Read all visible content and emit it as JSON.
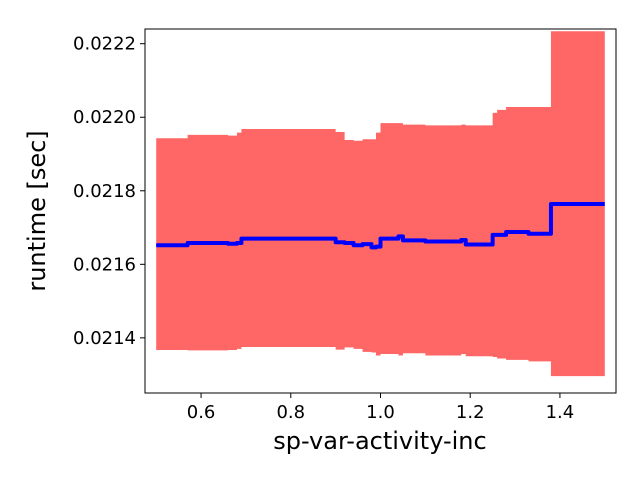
{
  "chart_data": {
    "type": "line",
    "title": "",
    "xlabel": "sp-var-activity-inc",
    "ylabel": "runtime [sec]",
    "xlim": [
      0.475,
      1.525
    ],
    "ylim": [
      0.02125,
      0.02224
    ],
    "xticks": [
      0.6,
      0.8,
      1.0,
      1.2,
      1.4
    ],
    "xtick_labels": [
      "0.6",
      "0.8",
      "1.0",
      "1.2",
      "1.4"
    ],
    "yticks": [
      0.0214,
      0.0216,
      0.0218,
      0.022,
      0.0222
    ],
    "ytick_labels": [
      "0.0214",
      "0.0216",
      "0.0218",
      "0.0220",
      "0.0222"
    ],
    "grid": false,
    "legend": "none",
    "colors": {
      "line": "#0000ff",
      "band": "#ff6666"
    },
    "series": [
      {
        "x": [
          0.5,
          0.56,
          0.57,
          0.66,
          0.68,
          0.69,
          0.88,
          0.9,
          0.92,
          0.94,
          0.96,
          0.98,
          0.99,
          1.0,
          1.04,
          1.05,
          1.09,
          1.1,
          1.17,
          1.18,
          1.19,
          1.24,
          1.25,
          1.26,
          1.28,
          1.32,
          1.33,
          1.37,
          1.38,
          1.5
        ],
        "y": [
          0.021652,
          0.021652,
          0.021658,
          0.021656,
          0.021658,
          0.02167,
          0.02167,
          0.02166,
          0.021658,
          0.021652,
          0.021655,
          0.021646,
          0.021648,
          0.02167,
          0.021676,
          0.021665,
          0.021665,
          0.021662,
          0.021662,
          0.021666,
          0.021654,
          0.021654,
          0.02168,
          0.02168,
          0.021688,
          0.021688,
          0.021683,
          0.021683,
          0.021764,
          0.021764
        ],
        "upper": [
          0.021943,
          0.021943,
          0.021952,
          0.02195,
          0.021958,
          0.021968,
          0.021968,
          0.02196,
          0.021938,
          0.021936,
          0.02194,
          0.02194,
          0.021958,
          0.021984,
          0.021984,
          0.02198,
          0.02198,
          0.021978,
          0.021978,
          0.02198,
          0.021978,
          0.021978,
          0.022012,
          0.02202,
          0.022028,
          0.022028,
          0.022028,
          0.022028,
          0.022234,
          0.022234
        ],
        "lower": [
          0.021367,
          0.021367,
          0.021366,
          0.021367,
          0.02137,
          0.021375,
          0.021375,
          0.021368,
          0.021374,
          0.02137,
          0.021362,
          0.02136,
          0.021352,
          0.021356,
          0.021352,
          0.021358,
          0.021358,
          0.021352,
          0.021352,
          0.021356,
          0.02135,
          0.02135,
          0.021348,
          0.021344,
          0.02134,
          0.02134,
          0.021336,
          0.021336,
          0.021296,
          0.021296
        ]
      }
    ]
  }
}
